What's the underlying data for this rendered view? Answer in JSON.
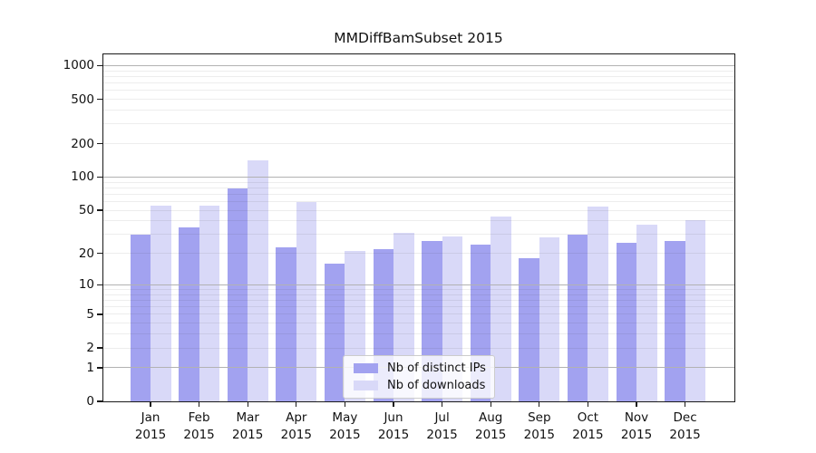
{
  "title": "MMDiffBamSubset 2015",
  "chart_data": {
    "type": "bar",
    "title": "MMDiffBamSubset 2015",
    "categories": [
      "Jan 2015",
      "Feb 2015",
      "Mar 2015",
      "Apr 2015",
      "May 2015",
      "Jun 2015",
      "Jul 2015",
      "Aug 2015",
      "Sep 2015",
      "Oct 2015",
      "Nov 2015",
      "Dec 2015"
    ],
    "series": [
      {
        "name": "Nb of distinct IPs",
        "color": "#a2a2f0",
        "values": [
          30,
          35,
          79,
          23,
          16,
          22,
          26,
          24,
          18,
          30,
          25,
          26
        ]
      },
      {
        "name": "Nb of downloads",
        "color": "#d9d9f8",
        "values": [
          55,
          55,
          142,
          60,
          21,
          31,
          29,
          44,
          28,
          54,
          37,
          41
        ]
      }
    ],
    "yscale": "log1p",
    "xlabel": "",
    "ylabel": "",
    "yticks": [
      0,
      1,
      2,
      5,
      10,
      20,
      50,
      100,
      200,
      500,
      1000
    ],
    "ylim": [
      0,
      1290
    ],
    "grid": "on",
    "legend_position": "lower-center"
  },
  "colors": {
    "background": "#ffffff",
    "frame": "#1a1a1a",
    "grid_major": "#b2b2b2",
    "grid_minor": "#ededed",
    "text": "#111111"
  }
}
